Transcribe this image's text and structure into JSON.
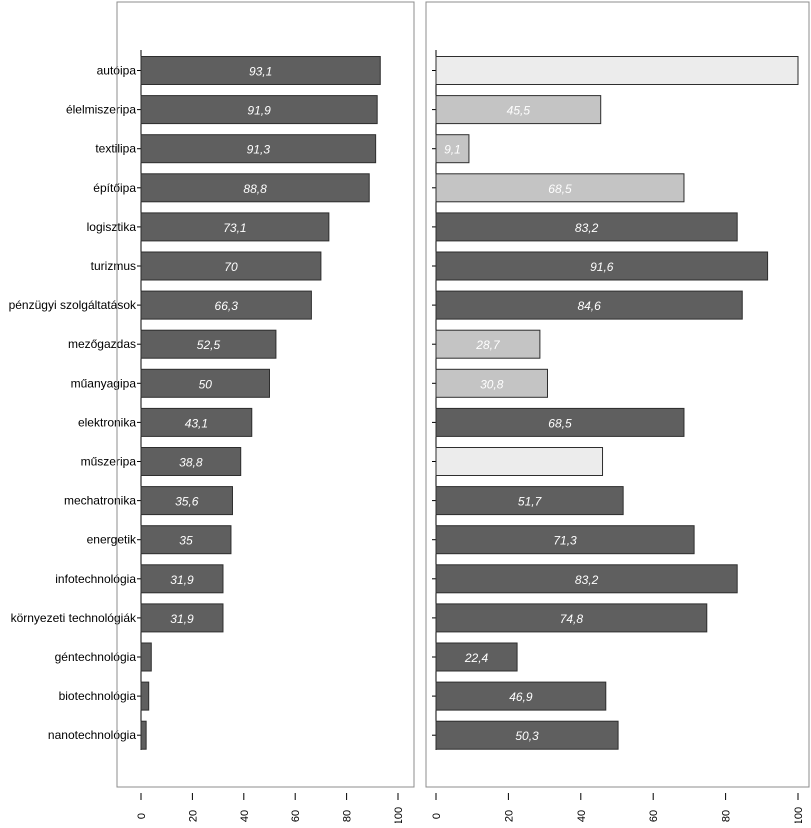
{
  "colors": {
    "bar": "#5f5f5f",
    "bar_light": "#c4c4c4",
    "bar_faint": "#ececec",
    "bar_stroke": "#2e2e2e",
    "label": "#ffffff",
    "axis": "#000000",
    "frame": "#8c8c8c"
  },
  "chart_data": [
    {
      "type": "bar",
      "orientation": "horizontal",
      "title": "",
      "xlabel": "",
      "ylabel": "",
      "xlim": [
        0,
        100
      ],
      "ticks": [
        0,
        20,
        40,
        60,
        80,
        100
      ],
      "categories": [
        "autóipa",
        "élelmiszeripa",
        "textilipa",
        "építőipa",
        "logisztika",
        "turizmus",
        "pénzügyi szolgáltatások",
        "mezőgazdas",
        "műanyagipa",
        "elektronika",
        "műszeripa",
        "mechatronika",
        "energetik",
        "infotechnológia",
        "környezeti technológiák",
        "géntechnológia",
        "biotechnológia",
        "nanotechnológia"
      ],
      "values": [
        93.1,
        91.9,
        91.3,
        88.8,
        73.1,
        70,
        66.3,
        52.5,
        50,
        43.1,
        38.8,
        35.6,
        35,
        31.9,
        31.9,
        4,
        3,
        2
      ],
      "value_labels": [
        "93,1",
        "91,9",
        "91,3",
        "88,8",
        "73,1",
        "70",
        "66,3",
        "52,5",
        "50",
        "43,1",
        "38,8",
        "35,6",
        "35",
        "31,9",
        "31,9",
        "",
        "",
        ""
      ],
      "grid": false
    },
    {
      "type": "bar",
      "orientation": "horizontal",
      "title": "",
      "xlabel": "",
      "ylabel": "",
      "xlim": [
        0,
        100
      ],
      "ticks": [
        0,
        20,
        40,
        60,
        80,
        100
      ],
      "values": [
        100,
        45.5,
        9.1,
        68.5,
        83.2,
        91.6,
        84.6,
        28.7,
        30.8,
        68.5,
        46,
        51.7,
        71.3,
        83.2,
        74.8,
        22.4,
        46.9,
        50.3
      ],
      "value_labels": [
        "",
        "45,5",
        "9,1",
        "68,5",
        "83,2",
        "91,6",
        "84,6",
        "28,7",
        "30,8",
        "68,5",
        "",
        "51,7",
        "71,3",
        "83,2",
        "74,8",
        "22,4",
        "46,9",
        "50,3"
      ],
      "tones": [
        "faint",
        "light",
        "light",
        "light",
        "dark",
        "dark",
        "dark",
        "light",
        "light",
        "dark",
        "faint",
        "dark",
        "dark",
        "dark",
        "dark",
        "dark",
        "dark",
        "dark"
      ],
      "grid": false
    }
  ]
}
